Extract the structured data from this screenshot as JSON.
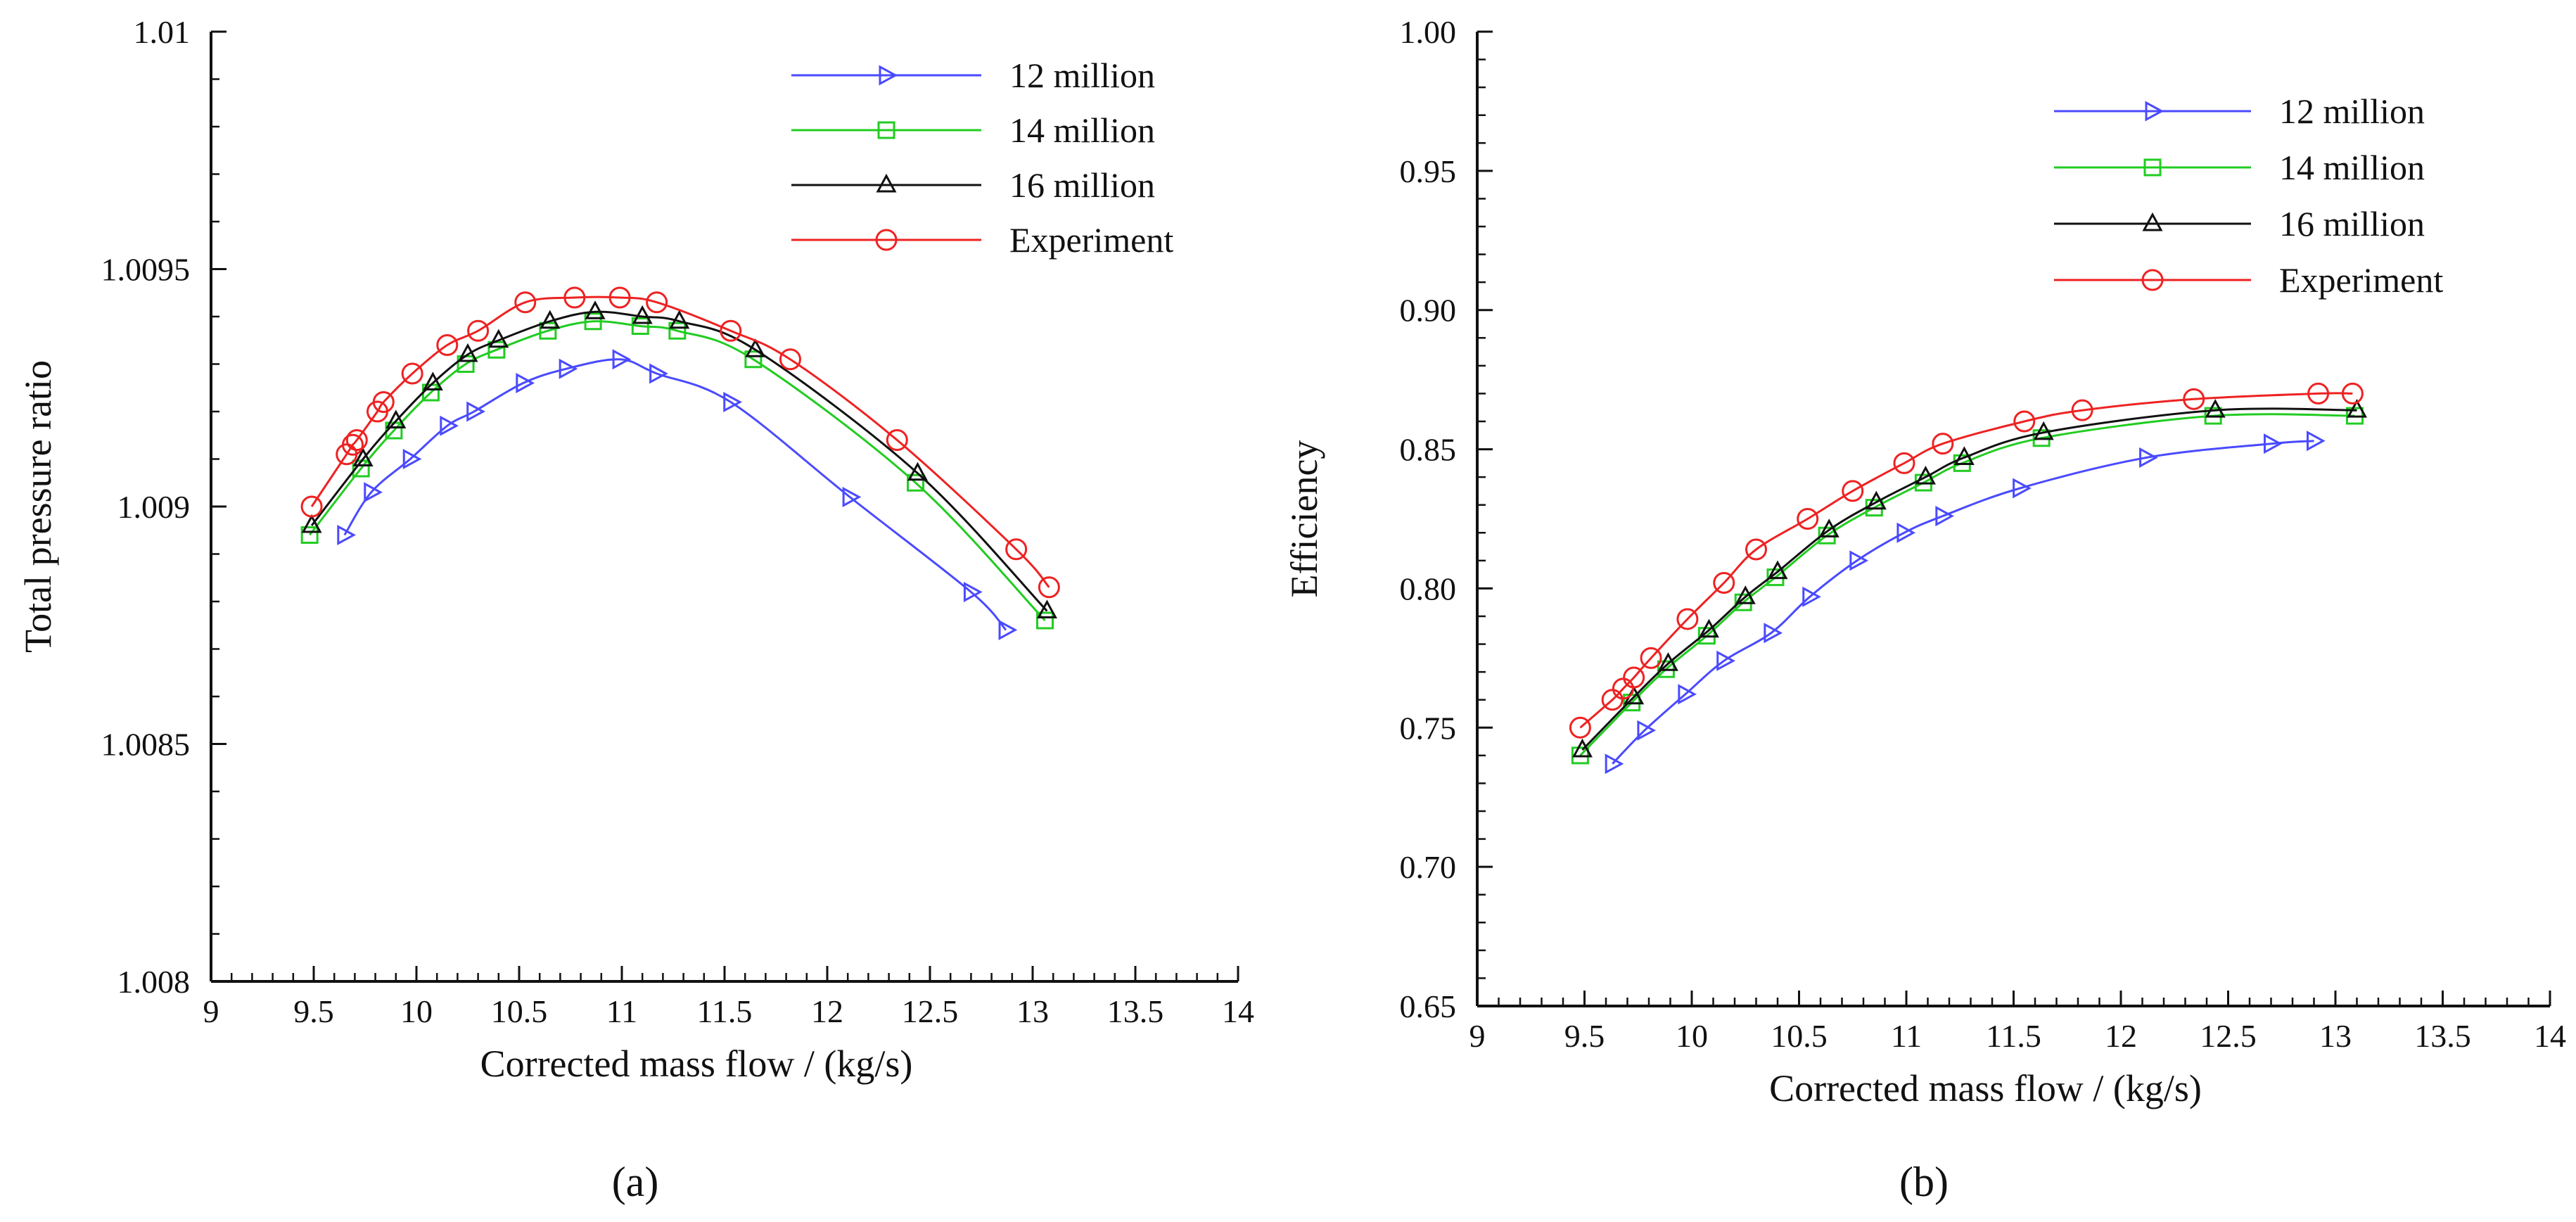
{
  "chart_data": [
    {
      "type": "line",
      "panel_label": "(a)",
      "xlabel": "Corrected mass flow / (kg/s)",
      "ylabel": "Total pressure ratio",
      "xlim": [
        9,
        14
      ],
      "ylim": [
        1.008,
        1.01
      ],
      "x_ticks": [
        "9",
        "9.5",
        "10",
        "10.5",
        "11",
        "11.5",
        "12",
        "12.5",
        "13",
        "13.5",
        "14"
      ],
      "y_ticks": [
        "1.008",
        "1.0085",
        "1.009",
        "1.0095",
        "1.01"
      ],
      "legend_position": "top-right",
      "series": [
        {
          "name": "12 million",
          "color": "#4a4aff",
          "marker": "triangle-right",
          "x": [
            9.65,
            9.78,
            9.97,
            10.15,
            10.28,
            10.52,
            10.73,
            10.99,
            11.17,
            11.53,
            12.11,
            12.7,
            12.87
          ],
          "y": [
            1.00894,
            1.00903,
            1.0091,
            1.00917,
            1.0092,
            1.00926,
            1.00929,
            1.00931,
            1.00928,
            1.00922,
            1.00902,
            1.00882,
            1.00874
          ]
        },
        {
          "name": "14 million",
          "color": "#22cc22",
          "marker": "square",
          "x": [
            9.48,
            9.73,
            9.89,
            10.07,
            10.24,
            10.39,
            10.64,
            10.86,
            11.09,
            11.27,
            11.64,
            12.43,
            13.06
          ],
          "y": [
            1.00894,
            1.00908,
            1.00916,
            1.00924,
            1.0093,
            1.00933,
            1.00937,
            1.00939,
            1.00938,
            1.00937,
            1.00931,
            1.00905,
            1.00876
          ]
        },
        {
          "name": "16 million",
          "color": "#111111",
          "marker": "triangle-up",
          "x": [
            9.49,
            9.74,
            9.9,
            10.08,
            10.25,
            10.4,
            10.65,
            10.87,
            11.1,
            11.28,
            11.65,
            12.44,
            13.07
          ],
          "y": [
            1.00896,
            1.0091,
            1.00918,
            1.00926,
            1.00932,
            1.00935,
            1.00939,
            1.00941,
            1.0094,
            1.00939,
            1.00933,
            1.00907,
            1.00878
          ]
        },
        {
          "name": "Experiment",
          "color": "#ee2222",
          "marker": "circle",
          "x": [
            9.49,
            9.66,
            9.69,
            9.71,
            9.81,
            9.84,
            9.98,
            10.15,
            10.3,
            10.53,
            10.77,
            10.99,
            11.17,
            11.53,
            11.82,
            12.34,
            12.92,
            13.08
          ],
          "y": [
            1.009,
            1.00911,
            1.00913,
            1.00914,
            1.0092,
            1.00922,
            1.00928,
            1.00934,
            1.00937,
            1.00943,
            1.00944,
            1.00944,
            1.00943,
            1.00937,
            1.00931,
            1.00914,
            1.00891,
            1.00883
          ]
        }
      ]
    },
    {
      "type": "line",
      "panel_label": "(b)",
      "xlabel": "Corrected mass flow / (kg/s)",
      "ylabel": "Efficiency",
      "xlim": [
        9,
        14
      ],
      "ylim": [
        0.65,
        1.0
      ],
      "x_ticks": [
        "9",
        "9.5",
        "10",
        "10.5",
        "11",
        "11.5",
        "12",
        "12.5",
        "13",
        "13.5",
        "14"
      ],
      "y_ticks": [
        "0.65",
        "0.70",
        "0.75",
        "0.80",
        "0.85",
        "0.90",
        "0.95",
        "1.00"
      ],
      "legend_position": "top-right",
      "series": [
        {
          "name": "12 million",
          "color": "#4a4aff",
          "marker": "triangle-right",
          "x": [
            9.63,
            9.78,
            9.97,
            10.15,
            10.37,
            10.55,
            10.77,
            10.99,
            11.17,
            11.53,
            12.12,
            12.7,
            12.9
          ],
          "y": [
            0.737,
            0.749,
            0.762,
            0.774,
            0.784,
            0.797,
            0.81,
            0.82,
            0.826,
            0.836,
            0.847,
            0.852,
            0.853
          ]
        },
        {
          "name": "14 million",
          "color": "#22cc22",
          "marker": "square",
          "x": [
            9.48,
            9.72,
            9.88,
            10.07,
            10.24,
            10.39,
            10.63,
            10.85,
            11.08,
            11.26,
            11.63,
            12.43,
            13.09
          ],
          "y": [
            0.74,
            0.759,
            0.771,
            0.783,
            0.795,
            0.804,
            0.819,
            0.829,
            0.838,
            0.845,
            0.854,
            0.862,
            0.862
          ]
        },
        {
          "name": "16 million",
          "color": "#111111",
          "marker": "triangle-up",
          "x": [
            9.49,
            9.73,
            9.89,
            10.08,
            10.25,
            10.4,
            10.64,
            10.86,
            11.09,
            11.27,
            11.64,
            12.44,
            13.1
          ],
          "y": [
            0.742,
            0.761,
            0.773,
            0.785,
            0.797,
            0.806,
            0.821,
            0.831,
            0.84,
            0.847,
            0.856,
            0.864,
            0.864
          ]
        },
        {
          "name": "Experiment",
          "color": "#ee2222",
          "marker": "circle",
          "x": [
            9.48,
            9.63,
            9.68,
            9.73,
            9.81,
            9.98,
            10.15,
            10.3,
            10.54,
            10.75,
            10.99,
            11.17,
            11.55,
            11.82,
            12.34,
            12.92,
            13.08
          ],
          "y": [
            0.75,
            0.76,
            0.764,
            0.768,
            0.775,
            0.789,
            0.802,
            0.814,
            0.825,
            0.835,
            0.845,
            0.852,
            0.86,
            0.864,
            0.868,
            0.87,
            0.87
          ]
        }
      ]
    }
  ]
}
